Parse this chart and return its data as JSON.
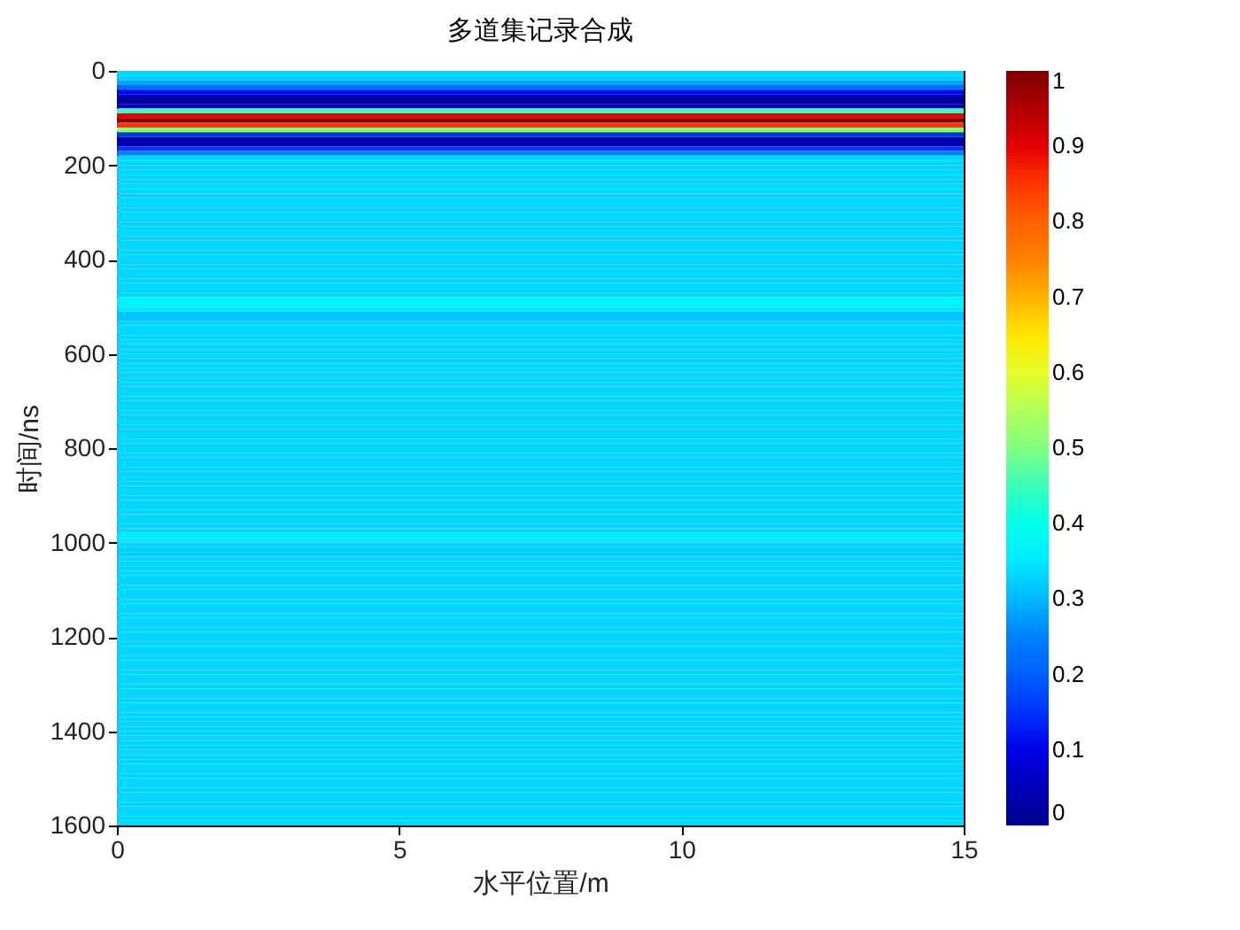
{
  "chart_data": {
    "type": "heatmap",
    "title": "多道集记录合成",
    "xlabel": "水平位置/m",
    "ylabel": "时间/ns",
    "xlim": [
      0,
      15
    ],
    "ylim": [
      1600,
      0
    ],
    "xticks": [
      0,
      5,
      10,
      15
    ],
    "yticks": [
      0,
      200,
      400,
      600,
      800,
      1000,
      1200,
      1400,
      1600
    ],
    "clim": [
      0,
      1
    ],
    "cticks": [
      0,
      0.1,
      0.2,
      0.3,
      0.4,
      0.5,
      0.6,
      0.7,
      0.8,
      0.9,
      1
    ],
    "cells": [
      [
        0.33
      ],
      [
        0.32
      ],
      [
        0.28
      ],
      [
        0.22
      ],
      [
        0.12
      ],
      [
        0.03
      ],
      [
        0.02
      ],
      [
        0.05
      ],
      [
        0.45
      ],
      [
        0.9
      ],
      [
        1
      ],
      [
        0.85
      ],
      [
        0.5
      ],
      [
        0.15
      ],
      [
        0.03
      ],
      [
        0.05
      ],
      [
        0.15
      ],
      [
        0.25
      ],
      [
        0.33
      ],
      [
        0.33
      ],
      [
        0.33
      ],
      [
        0.33
      ],
      [
        0.33
      ],
      [
        0.33
      ],
      [
        0.33
      ],
      [
        0.33
      ],
      [
        0.33
      ],
      [
        0.33
      ],
      [
        0.33
      ],
      [
        0.33
      ],
      [
        0.33
      ],
      [
        0.33
      ],
      [
        0.33
      ],
      [
        0.33
      ],
      [
        0.33
      ],
      [
        0.33
      ],
      [
        0.33
      ],
      [
        0.33
      ],
      [
        0.33
      ],
      [
        0.33
      ],
      [
        0.33
      ],
      [
        0.33
      ],
      [
        0.33
      ],
      [
        0.33
      ],
      [
        0.33
      ],
      [
        0.33
      ],
      [
        0.33
      ],
      [
        0.33
      ],
      [
        0.36
      ],
      [
        0.36
      ],
      [
        0.35
      ],
      [
        0.31
      ],
      [
        0.31
      ],
      [
        0.33
      ],
      [
        0.33
      ],
      [
        0.33
      ],
      [
        0.33
      ],
      [
        0.33
      ],
      [
        0.33
      ],
      [
        0.33
      ],
      [
        0.33
      ],
      [
        0.33
      ],
      [
        0.33
      ],
      [
        0.33
      ],
      [
        0.33
      ],
      [
        0.33
      ],
      [
        0.33
      ],
      [
        0.33
      ],
      [
        0.33
      ],
      [
        0.33
      ],
      [
        0.33
      ],
      [
        0.33
      ],
      [
        0.33
      ],
      [
        0.33
      ],
      [
        0.33
      ],
      [
        0.33
      ],
      [
        0.33
      ],
      [
        0.33
      ],
      [
        0.33
      ],
      [
        0.33
      ],
      [
        0.33
      ],
      [
        0.33
      ],
      [
        0.33
      ],
      [
        0.33
      ],
      [
        0.33
      ],
      [
        0.33
      ],
      [
        0.33
      ],
      [
        0.33
      ],
      [
        0.33
      ],
      [
        0.33
      ],
      [
        0.33
      ],
      [
        0.33
      ],
      [
        0.33
      ],
      [
        0.33
      ],
      [
        0.33
      ],
      [
        0.33
      ],
      [
        0.33
      ],
      [
        0.33
      ],
      [
        0.35
      ],
      [
        0.35
      ],
      [
        0.33
      ],
      [
        0.32
      ],
      [
        0.32
      ],
      [
        0.33
      ],
      [
        0.33
      ],
      [
        0.33
      ],
      [
        0.33
      ],
      [
        0.33
      ],
      [
        0.33
      ],
      [
        0.33
      ],
      [
        0.33
      ],
      [
        0.33
      ],
      [
        0.33
      ],
      [
        0.33
      ],
      [
        0.33
      ],
      [
        0.33
      ],
      [
        0.33
      ],
      [
        0.33
      ],
      [
        0.33
      ],
      [
        0.33
      ],
      [
        0.33
      ],
      [
        0.33
      ],
      [
        0.33
      ],
      [
        0.33
      ],
      [
        0.33
      ],
      [
        0.33
      ],
      [
        0.33
      ],
      [
        0.33
      ],
      [
        0.33
      ],
      [
        0.33
      ],
      [
        0.33
      ],
      [
        0.33
      ],
      [
        0.33
      ],
      [
        0.33
      ],
      [
        0.33
      ],
      [
        0.33
      ],
      [
        0.33
      ],
      [
        0.33
      ],
      [
        0.33
      ],
      [
        0.33
      ],
      [
        0.33
      ],
      [
        0.33
      ],
      [
        0.33
      ],
      [
        0.33
      ],
      [
        0.33
      ],
      [
        0.33
      ],
      [
        0.33
      ],
      [
        0.33
      ],
      [
        0.33
      ],
      [
        0.33
      ],
      [
        0.33
      ],
      [
        0.33
      ],
      [
        0.33
      ],
      [
        0.33
      ],
      [
        0.33
      ],
      [
        0.33
      ],
      [
        0.33
      ],
      [
        0.33
      ],
      [
        0.33
      ],
      [
        0.33
      ]
    ]
  }
}
